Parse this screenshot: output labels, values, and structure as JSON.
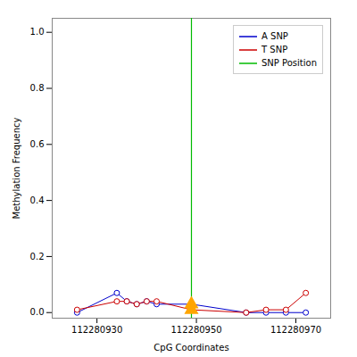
{
  "chart_data": {
    "type": "line",
    "xlabel": "CpG Coordinates",
    "ylabel": "Methylation Frequency",
    "x": [
      112280926,
      112280934,
      112280936,
      112280938,
      112280940,
      112280942,
      112280949,
      112280960,
      112280964,
      112280968,
      112280972
    ],
    "series": [
      {
        "name": "A SNP",
        "color": "#0000cc",
        "marker": "circle",
        "values": [
          0.0,
          0.07,
          0.04,
          0.03,
          0.04,
          0.03,
          0.03,
          0.0,
          0.0,
          0.0,
          0.0
        ]
      },
      {
        "name": "T SNP",
        "color": "#cc0000",
        "marker": "circle",
        "values": [
          0.01,
          0.04,
          0.04,
          0.03,
          0.04,
          0.04,
          0.01,
          0.0,
          0.01,
          0.01,
          0.07
        ]
      }
    ],
    "vlines": [
      {
        "name": "SNP Position",
        "x": 112280949,
        "color": "#00bb00"
      }
    ],
    "highlights": {
      "color": "#FFA500",
      "marker": "triangle",
      "x": [
        112280949,
        112280949
      ],
      "y": [
        0.03,
        0.01
      ]
    },
    "xlim": [
      112280921,
      112280977
    ],
    "ylim": [
      -0.02,
      1.05
    ],
    "xticks": [
      112280930,
      112280950,
      112280970
    ],
    "yticks": [
      {
        "value": 0.0,
        "label": "0.0"
      },
      0.2,
      0.4,
      0.6,
      0.8,
      {
        "value": 1.0,
        "label": "1.0"
      }
    ],
    "grid": false,
    "legend": "upper right"
  }
}
